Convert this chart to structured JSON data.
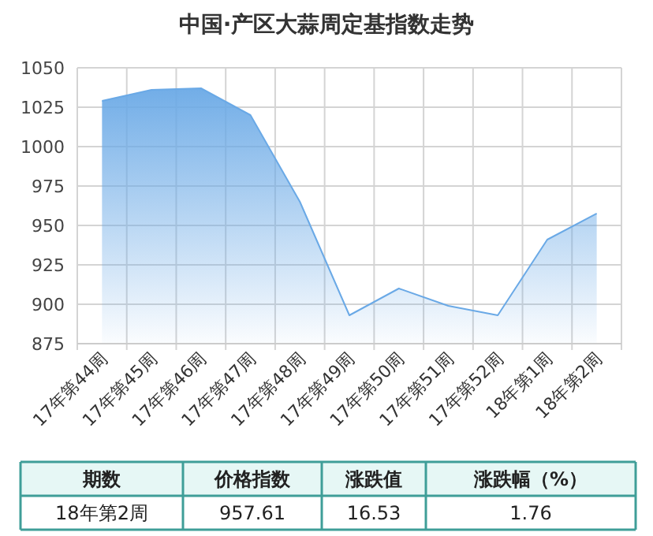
{
  "chart_data": {
    "type": "area",
    "title": "中国·产区大蒜周定基指数走势",
    "categories": [
      "17年第44周",
      "17年第45周",
      "17年第46周",
      "17年第47周",
      "17年第48周",
      "17年第49周",
      "17年第50周",
      "17年第51周",
      "17年第52周",
      "18年第1周",
      "18年第2周"
    ],
    "series": [
      {
        "color": "#6aa9e6",
        "values": [
          1029,
          1036,
          1037,
          1020,
          965,
          893,
          910,
          899,
          893,
          941,
          957.61
        ]
      }
    ],
    "ylim": [
      875,
      1050
    ],
    "yticks": [
      875,
      900,
      925,
      950,
      975,
      1000,
      1025,
      1050
    ],
    "grid": true,
    "annotations": [
      "期数",
      "价格指数",
      "涨跌值",
      "涨跌幅（%）",
      "18年第2周",
      "957.61",
      "16.53",
      "1.76"
    ]
  }
}
